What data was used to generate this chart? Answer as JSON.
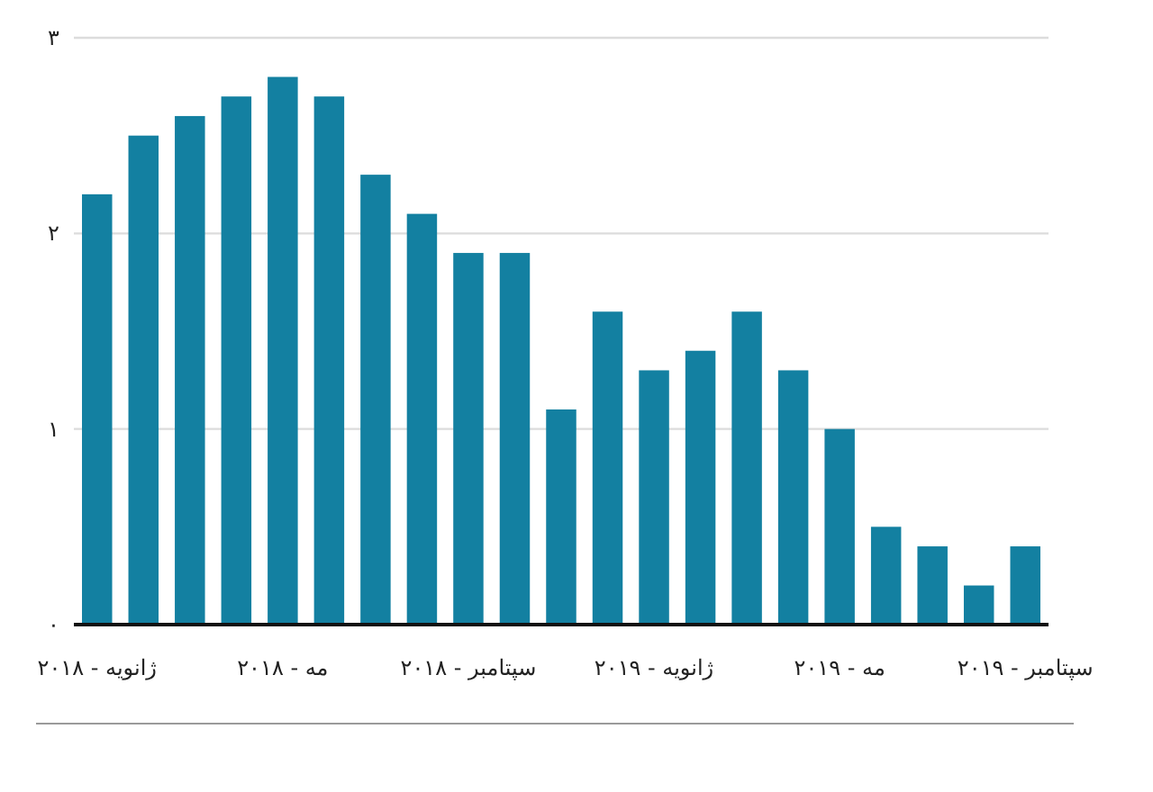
{
  "chart_data": {
    "type": "bar",
    "categories": [
      "ژانویه - ۲۰۱۸",
      null,
      null,
      null,
      "مه - ۲۰۱۸",
      null,
      null,
      null,
      "سپتامبر - ۲۰۱۸",
      null,
      null,
      null,
      "ژانویه - ۲۰۱۹",
      null,
      null,
      null,
      "مه - ۲۰۱۹",
      null,
      null,
      null,
      "سپتامبر - ۲۰۱۹"
    ],
    "values": [
      2.2,
      2.5,
      2.6,
      2.7,
      2.8,
      2.7,
      2.3,
      2.1,
      1.9,
      1.9,
      1.1,
      1.6,
      1.3,
      1.4,
      1.6,
      1.3,
      1.0,
      0.5,
      0.4,
      0.2,
      0.4
    ],
    "color": "#1380a1",
    "ylim": [
      0,
      3
    ],
    "yticks": [
      {
        "value": 0,
        "label": "۰"
      },
      {
        "value": 1,
        "label": "۱"
      },
      {
        "value": 2,
        "label": "۲"
      },
      {
        "value": 3,
        "label": "۳"
      }
    ],
    "grid": "y"
  }
}
